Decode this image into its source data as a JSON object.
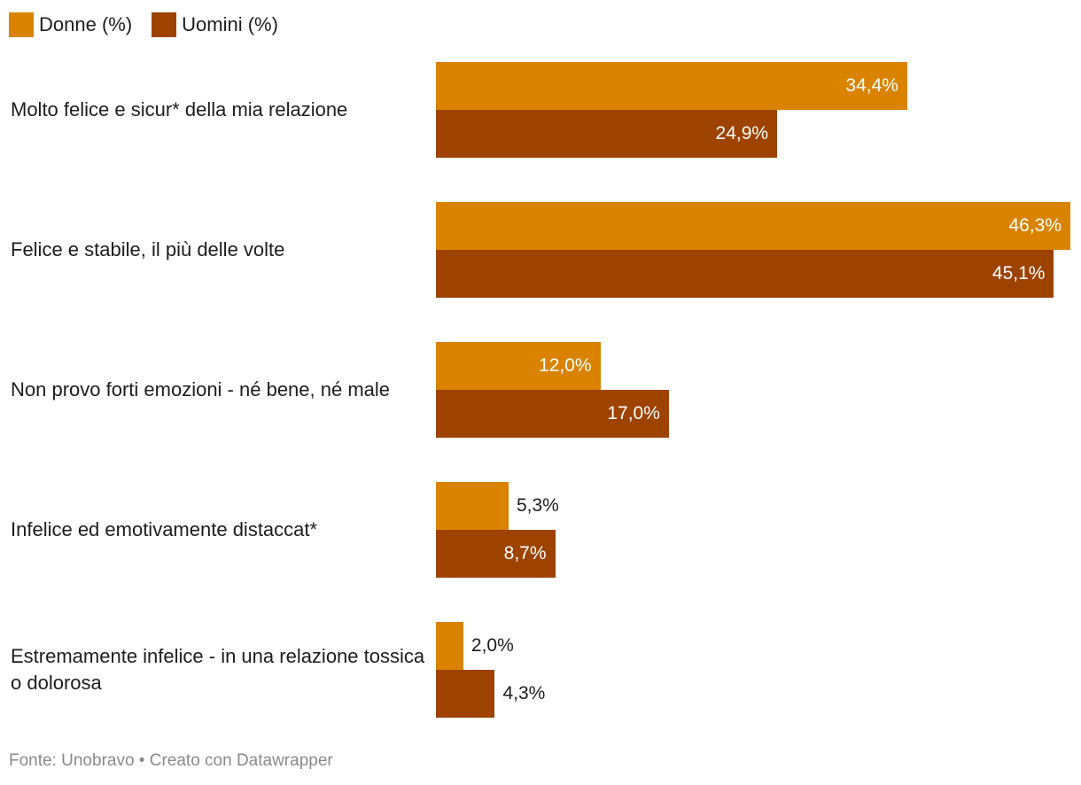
{
  "legend": {
    "women_label": "Donne (%)",
    "men_label": "Uomini (%)"
  },
  "footer": {
    "text": "Fonte: Unobravo • Creato con Datawrapper"
  },
  "colors": {
    "women": "#D98300",
    "men": "#9E4200"
  },
  "chart_data": {
    "type": "bar",
    "orientation": "horizontal",
    "categories": [
      "Molto felice e sicur* della mia relazione",
      "Felice e stabile, il più delle volte",
      "Non provo forti emozioni - né bene, né male",
      "Infelice ed emotivamente distaccat*",
      "Estremamente infelice - in una relazione tossica o dolorosa"
    ],
    "series": [
      {
        "name": "Donne (%)",
        "values": [
          34.4,
          46.3,
          12.0,
          5.3,
          2.0
        ],
        "labels": [
          "34,4%",
          "46,3%",
          "12,0%",
          "5,3%",
          "2,0%"
        ]
      },
      {
        "name": "Uomini (%)",
        "values": [
          24.9,
          45.1,
          17.0,
          8.7,
          4.3
        ],
        "labels": [
          "24,9%",
          "45,1%",
          "17,0%",
          "8,7%",
          "4,3%"
        ]
      }
    ],
    "xlim": [
      0,
      46.3
    ],
    "grid": false,
    "legend": "top-left"
  }
}
